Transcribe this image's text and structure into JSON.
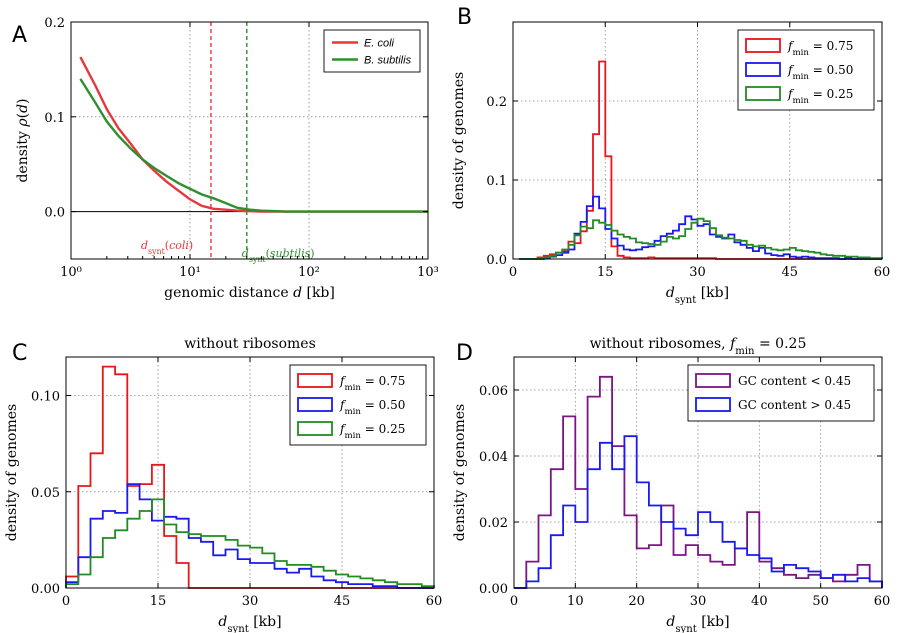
{
  "chart_data": [
    {
      "panel": "A",
      "type": "line",
      "xscale": "log",
      "xlim": [
        1,
        1000
      ],
      "ylim": [
        -0.05,
        0.2
      ],
      "xticks": [
        {
          "v": 1,
          "label": "10⁰"
        },
        {
          "v": 10,
          "label": "10¹"
        },
        {
          "v": 100,
          "label": "10²"
        },
        {
          "v": 1000,
          "label": "10³"
        }
      ],
      "yticks": [
        {
          "v": 0.0,
          "label": "0.0"
        },
        {
          "v": 0.1,
          "label": "0.1"
        },
        {
          "v": 0.2,
          "label": "0.2"
        }
      ],
      "xlabel": "genomic distance d [kb]",
      "ylabel": "density ρ(d)",
      "zero_line": true,
      "vlines": [
        {
          "x": 15,
          "color": "#e8363a",
          "label": "d_synt(coli)"
        },
        {
          "x": 30,
          "color": "#2f8f2f",
          "label": "d_synt(subtilis)"
        }
      ],
      "series": [
        {
          "name": "E. coli",
          "color": "#e8363a",
          "x": [
            1.2,
            1.6,
            2.0,
            2.5,
            3.2,
            4.0,
            5.0,
            6.3,
            8.0,
            10,
            12.6,
            15.8,
            20,
            25,
            32,
            40,
            50,
            63,
            80,
            100,
            200,
            400,
            700,
            1000
          ],
          "y": [
            0.163,
            0.133,
            0.108,
            0.088,
            0.071,
            0.055,
            0.043,
            0.032,
            0.022,
            0.013,
            0.006,
            0.003,
            0.002,
            0.001,
            0.0005,
            0.0,
            0.0,
            0.0,
            0.0,
            0.0,
            0.0,
            0.0,
            0.0,
            0.0
          ]
        },
        {
          "name": "B. subtilis",
          "color": "#2f8f2f",
          "x": [
            1.2,
            1.6,
            2.0,
            2.5,
            3.2,
            4.0,
            5.0,
            6.3,
            8.0,
            10,
            12.6,
            15.8,
            20,
            25,
            32,
            40,
            50,
            63,
            80,
            100,
            200,
            400,
            700,
            1000
          ],
          "y": [
            0.14,
            0.115,
            0.095,
            0.08,
            0.066,
            0.055,
            0.046,
            0.038,
            0.03,
            0.024,
            0.018,
            0.014,
            0.009,
            0.004,
            0.002,
            0.001,
            0.0005,
            0.0,
            0.0,
            0.0,
            0.0,
            0.0,
            0.0,
            0.0
          ]
        }
      ],
      "legend": {
        "position": "top-right",
        "entries": [
          "E. coli",
          "B. subtilis"
        ]
      }
    },
    {
      "panel": "B",
      "type": "histogram",
      "xlim": [
        0,
        60
      ],
      "ylim": [
        0,
        0.3
      ],
      "xticks": [
        {
          "v": 0,
          "label": "0"
        },
        {
          "v": 15,
          "label": "15"
        },
        {
          "v": 30,
          "label": "30"
        },
        {
          "v": 45,
          "label": "45"
        },
        {
          "v": 60,
          "label": "60"
        }
      ],
      "yticks": [
        {
          "v": 0.0,
          "label": "0.0"
        },
        {
          "v": 0.1,
          "label": "0.1"
        },
        {
          "v": 0.2,
          "label": "0.2"
        }
      ],
      "xlabel": "d_synt [kb]",
      "ylabel": "density of genomes",
      "bin_width": 1,
      "bin_start": 1,
      "series": [
        {
          "name": "f_min = 0.75",
          "color": "#e8151b",
          "values": [
            0.0,
            0.0,
            0.0,
            0.002,
            0.004,
            0.006,
            0.008,
            0.01,
            0.022,
            0.02,
            0.035,
            0.061,
            0.158,
            0.25,
            0.13,
            0.016,
            0.004,
            0.002,
            0.001,
            0.001,
            0.001,
            0.002,
            0.001,
            0.001,
            0.001,
            0.001,
            0.001,
            0.001,
            0.001,
            0.001,
            0.001,
            0.001,
            0.0,
            0.0,
            0.0,
            0.0,
            0.0,
            0.0,
            0.0,
            0.0,
            0.0,
            0.0,
            0.0,
            0.0,
            0.0,
            0.0,
            0.0,
            0.0,
            0.0,
            0.0,
            0.0,
            0.0,
            0.0,
            0.0,
            0.0,
            0.0,
            0.0,
            0.0,
            0.0
          ]
        },
        {
          "name": "f_min = 0.50",
          "color": "#1a1aee",
          "values": [
            0.0,
            0.0,
            0.0,
            0.0,
            0.001,
            0.003,
            0.005,
            0.008,
            0.012,
            0.032,
            0.047,
            0.067,
            0.079,
            0.064,
            0.038,
            0.026,
            0.017,
            0.012,
            0.011,
            0.012,
            0.015,
            0.016,
            0.023,
            0.029,
            0.032,
            0.036,
            0.044,
            0.054,
            0.05,
            0.042,
            0.044,
            0.031,
            0.028,
            0.026,
            0.031,
            0.021,
            0.018,
            0.014,
            0.01,
            0.014,
            0.007,
            0.005,
            0.004,
            0.006,
            0.003,
            0.002,
            0.003,
            0.002,
            0.001,
            0.001,
            0.001,
            0.001,
            0.0,
            0.001,
            0.0,
            0.0,
            0.0,
            0.0,
            0.0
          ]
        },
        {
          "name": "f_min = 0.25",
          "color": "#228b22",
          "values": [
            0.0,
            0.0,
            0.0,
            0.001,
            0.002,
            0.004,
            0.008,
            0.012,
            0.018,
            0.03,
            0.041,
            0.039,
            0.049,
            0.046,
            0.043,
            0.036,
            0.031,
            0.028,
            0.026,
            0.021,
            0.02,
            0.019,
            0.018,
            0.022,
            0.028,
            0.026,
            0.029,
            0.038,
            0.046,
            0.051,
            0.048,
            0.039,
            0.03,
            0.027,
            0.026,
            0.024,
            0.023,
            0.018,
            0.016,
            0.017,
            0.014,
            0.012,
            0.011,
            0.012,
            0.014,
            0.011,
            0.01,
            0.009,
            0.008,
            0.006,
            0.005,
            0.004,
            0.004,
            0.003,
            0.003,
            0.002,
            0.002,
            0.001,
            0.001
          ]
        }
      ],
      "legend": {
        "position": "top-right",
        "entries": [
          "f_min = 0.75",
          "f_min = 0.50",
          "f_min = 0.25"
        ]
      }
    },
    {
      "panel": "C",
      "type": "histogram",
      "title": "without ribosomes",
      "xlim": [
        0,
        60
      ],
      "ylim": [
        0,
        0.12
      ],
      "xticks": [
        {
          "v": 0,
          "label": "0"
        },
        {
          "v": 15,
          "label": "15"
        },
        {
          "v": 30,
          "label": "30"
        },
        {
          "v": 45,
          "label": "45"
        },
        {
          "v": 60,
          "label": "60"
        }
      ],
      "yticks": [
        {
          "v": 0.0,
          "label": "0.00"
        },
        {
          "v": 0.05,
          "label": "0.05"
        },
        {
          "v": 0.1,
          "label": "0.10"
        }
      ],
      "xlabel": "d_synt [kb]",
      "ylabel": "density of genomes",
      "bin_width": 2,
      "bin_start": 0,
      "series": [
        {
          "name": "f_min = 0.75",
          "color": "#e8151b",
          "values": [
            0.006,
            0.053,
            0.07,
            0.115,
            0.111,
            0.053,
            0.054,
            0.064,
            0.027,
            0.013,
            0.0,
            0.0,
            0.0,
            0.0,
            0.0,
            0.0,
            0.0,
            0.0,
            0.0,
            0.0,
            0.0,
            0.0,
            0.0,
            0.0,
            0.0,
            0.0,
            0.0,
            0.0,
            0.0,
            0.0
          ]
        },
        {
          "name": "f_min = 0.50",
          "color": "#1a1aee",
          "values": [
            0.003,
            0.016,
            0.036,
            0.04,
            0.039,
            0.054,
            0.046,
            0.035,
            0.037,
            0.036,
            0.026,
            0.024,
            0.017,
            0.02,
            0.015,
            0.013,
            0.013,
            0.01,
            0.008,
            0.01,
            0.006,
            0.004,
            0.003,
            0.002,
            0.002,
            0.001,
            0.001,
            0.0,
            0.0,
            0.0
          ]
        },
        {
          "name": "f_min = 0.25",
          "color": "#228b22",
          "values": [
            0.002,
            0.007,
            0.016,
            0.026,
            0.03,
            0.036,
            0.04,
            0.046,
            0.033,
            0.029,
            0.028,
            0.027,
            0.027,
            0.025,
            0.022,
            0.021,
            0.018,
            0.014,
            0.012,
            0.012,
            0.011,
            0.009,
            0.007,
            0.006,
            0.005,
            0.004,
            0.003,
            0.002,
            0.002,
            0.001
          ]
        }
      ],
      "legend": {
        "position": "top-right",
        "entries": [
          "f_min = 0.75",
          "f_min = 0.50",
          "f_min = 0.25"
        ]
      }
    },
    {
      "panel": "D",
      "type": "histogram",
      "title": "without ribosomes, f_min = 0.25",
      "xlim": [
        0,
        60
      ],
      "ylim": [
        0,
        0.07
      ],
      "xticks": [
        {
          "v": 0,
          "label": "0"
        },
        {
          "v": 10,
          "label": "10"
        },
        {
          "v": 20,
          "label": "20"
        },
        {
          "v": 30,
          "label": "30"
        },
        {
          "v": 40,
          "label": "40"
        },
        {
          "v": 50,
          "label": "50"
        },
        {
          "v": 60,
          "label": "60"
        }
      ],
      "yticks": [
        {
          "v": 0.0,
          "label": "0.00"
        },
        {
          "v": 0.02,
          "label": "0.02"
        },
        {
          "v": 0.04,
          "label": "0.04"
        },
        {
          "v": 0.06,
          "label": "0.06"
        }
      ],
      "xlabel": "d_synt [kb]",
      "ylabel": "density of genomes",
      "bin_width": 2,
      "bin_start": 0,
      "series": [
        {
          "name": "GC content < 0.45",
          "color": "#7b1584",
          "values": [
            0.0,
            0.008,
            0.022,
            0.036,
            0.052,
            0.03,
            0.058,
            0.064,
            0.043,
            0.022,
            0.012,
            0.013,
            0.025,
            0.01,
            0.013,
            0.01,
            0.008,
            0.007,
            0.012,
            0.023,
            0.008,
            0.006,
            0.004,
            0.003,
            0.004,
            0.003,
            0.002,
            0.004,
            0.007,
            0.002
          ]
        },
        {
          "name": "GC content > 0.45",
          "color": "#1a1aee",
          "values": [
            0.0,
            0.002,
            0.006,
            0.016,
            0.025,
            0.02,
            0.036,
            0.044,
            0.036,
            0.046,
            0.032,
            0.025,
            0.02,
            0.018,
            0.016,
            0.023,
            0.02,
            0.014,
            0.012,
            0.01,
            0.009,
            0.005,
            0.007,
            0.006,
            0.005,
            0.003,
            0.004,
            0.002,
            0.003,
            0.002
          ]
        }
      ],
      "legend": {
        "position": "top-right",
        "entries": [
          "GC content < 0.45",
          "GC content > 0.45"
        ]
      }
    }
  ]
}
